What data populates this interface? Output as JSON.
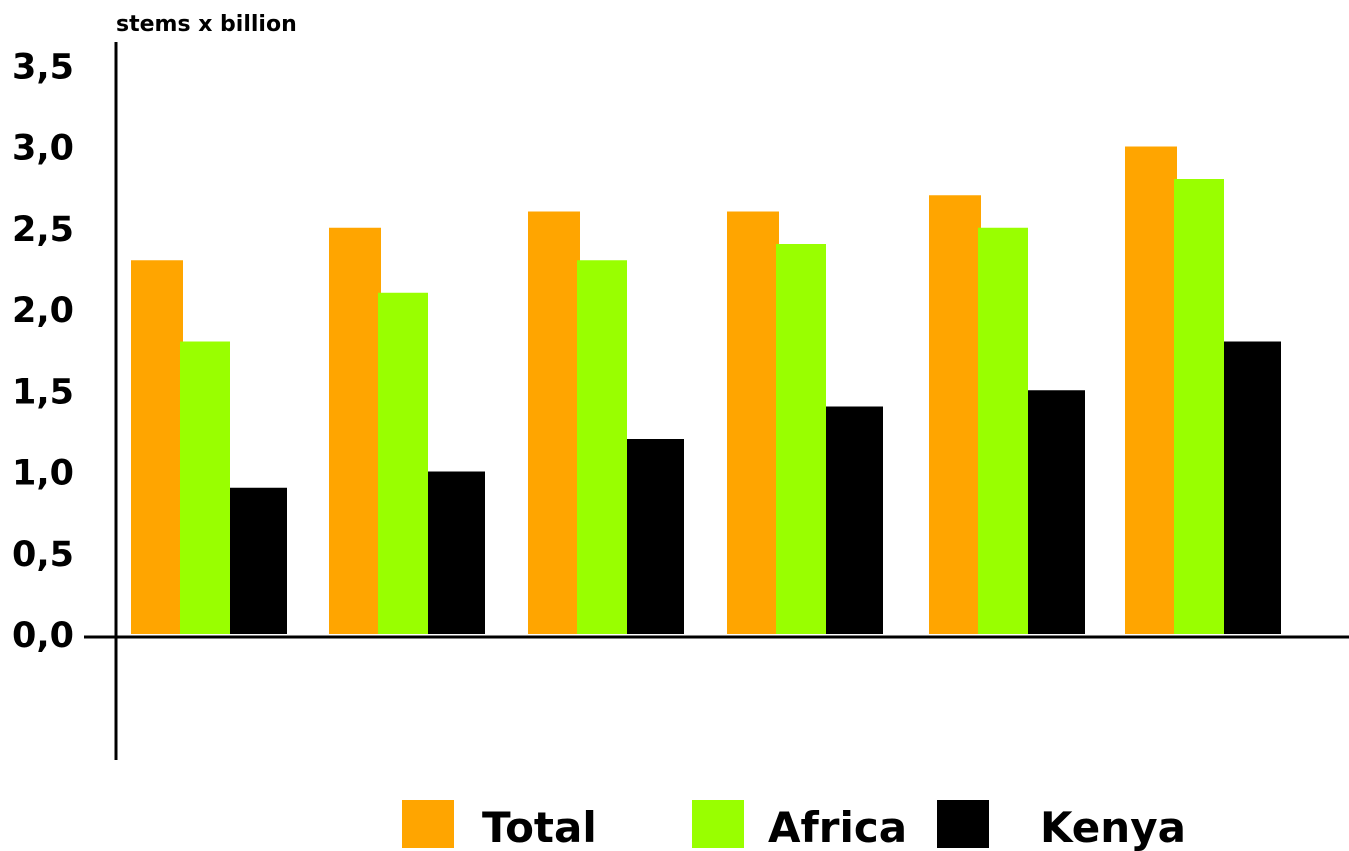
{
  "chart_data": {
    "type": "bar",
    "title": "",
    "xlabel": "",
    "ylabel": "stems x billion",
    "categories": [
      "",
      "",
      "",
      "",
      "",
      ""
    ],
    "ylim": [
      0,
      3.5
    ],
    "yticks": [
      "0,0",
      "0,5",
      "1,0",
      "1,5",
      "2,0",
      "2,5",
      "3,0",
      "3,5"
    ],
    "grid": false,
    "legend_position": "bottom",
    "series": [
      {
        "name": "Total",
        "color": "#FFA500",
        "values": [
          2.3,
          2.5,
          2.6,
          2.6,
          2.7,
          3.0
        ]
      },
      {
        "name": "Africa",
        "color": "#99FF00",
        "values": [
          1.8,
          2.1,
          2.3,
          2.4,
          2.5,
          2.8
        ]
      },
      {
        "name": "Kenya",
        "color": "#000000",
        "values": [
          0.9,
          1.0,
          1.2,
          1.4,
          1.5,
          1.8
        ]
      }
    ]
  }
}
